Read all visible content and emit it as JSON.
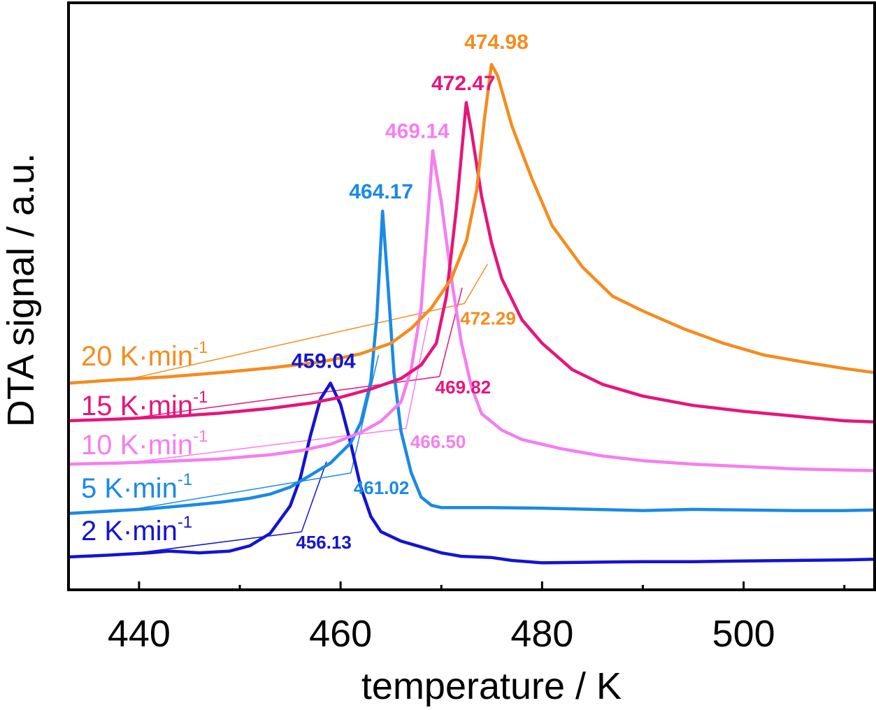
{
  "chart_data": {
    "type": "line",
    "xlabel": "temperature / K",
    "ylabel": "DTA signal / a.u.",
    "xlim": [
      433,
      513
    ],
    "ylim": [
      0,
      100
    ],
    "x_ticks": [
      440,
      460,
      480,
      500
    ],
    "x_minor_ticks": [
      450,
      470,
      490,
      510
    ],
    "y_ticks_shown": false,
    "grid": false,
    "series": [
      {
        "name": "2 K·min",
        "name_sup": "-1",
        "color": "#1414d2",
        "peak_label": "459.04",
        "onset_label": "456.13",
        "onset_x": 456.13,
        "points": [
          [
            433,
            5.6
          ],
          [
            437,
            5.9
          ],
          [
            441,
            6.3
          ],
          [
            443,
            6.6
          ],
          [
            446,
            6.3
          ],
          [
            449,
            6.6
          ],
          [
            451,
            7.5
          ],
          [
            453,
            9.6
          ],
          [
            455,
            14.3
          ],
          [
            456,
            19.0
          ],
          [
            457,
            26.2
          ],
          [
            458,
            32.5
          ],
          [
            459,
            35.2
          ],
          [
            460,
            31.6
          ],
          [
            461,
            25.0
          ],
          [
            462,
            17.5
          ],
          [
            463,
            12.5
          ],
          [
            464,
            9.9
          ],
          [
            466,
            8.3
          ],
          [
            468,
            7.3
          ],
          [
            470,
            6.3
          ],
          [
            472,
            5.7
          ],
          [
            475,
            5.5
          ],
          [
            477,
            5.0
          ],
          [
            480,
            4.6
          ],
          [
            485,
            4.7
          ],
          [
            490,
            4.8
          ],
          [
            495,
            4.8
          ],
          [
            500,
            4.9
          ],
          [
            505,
            5.0
          ],
          [
            510,
            5.1
          ],
          [
            513,
            5.2
          ]
        ]
      },
      {
        "name": "5 K·min",
        "name_sup": "-1",
        "color": "#1a8ae6",
        "peak_label": "464.17",
        "onset_label": "461.02",
        "onset_x": 461.02,
        "points": [
          [
            433,
            13.0
          ],
          [
            437,
            13.4
          ],
          [
            441,
            13.8
          ],
          [
            445,
            14.4
          ],
          [
            448,
            14.9
          ],
          [
            451,
            15.6
          ],
          [
            453,
            16.3
          ],
          [
            455,
            17.5
          ],
          [
            457,
            19.5
          ],
          [
            459,
            21.6
          ],
          [
            461,
            25.0
          ],
          [
            462,
            28.5
          ],
          [
            463,
            35.5
          ],
          [
            463.6,
            46.5
          ],
          [
            464.17,
            64.5
          ],
          [
            464.7,
            52.0
          ],
          [
            465.3,
            37.0
          ],
          [
            466,
            27.0
          ],
          [
            467,
            20.0
          ],
          [
            468,
            15.8
          ],
          [
            469,
            14.4
          ],
          [
            470,
            14.0
          ],
          [
            475,
            14.0
          ],
          [
            480,
            13.9
          ],
          [
            485,
            13.7
          ],
          [
            490,
            13.5
          ],
          [
            495,
            13.7
          ],
          [
            500,
            13.6
          ],
          [
            505,
            13.5
          ],
          [
            510,
            13.5
          ],
          [
            513,
            13.6
          ]
        ]
      },
      {
        "name": "10 K·min",
        "name_sup": "-1",
        "color": "#f57ef0",
        "peak_label": "469.14",
        "onset_label": "466.50",
        "onset_x": 466.5,
        "points": [
          [
            433,
            21.4
          ],
          [
            438,
            21.6
          ],
          [
            443,
            21.9
          ],
          [
            448,
            22.3
          ],
          [
            453,
            23.0
          ],
          [
            456,
            23.7
          ],
          [
            459,
            24.8
          ],
          [
            462,
            26.8
          ],
          [
            464,
            28.7
          ],
          [
            466,
            32.0
          ],
          [
            467,
            37.5
          ],
          [
            468,
            48.0
          ],
          [
            469.14,
            74.8
          ],
          [
            470,
            66.0
          ],
          [
            471,
            53.0
          ],
          [
            472,
            42.0
          ],
          [
            473,
            34.5
          ],
          [
            474,
            30.0
          ],
          [
            476,
            27.2
          ],
          [
            478,
            25.6
          ],
          [
            482,
            24.0
          ],
          [
            486,
            22.8
          ],
          [
            490,
            22.0
          ],
          [
            495,
            21.4
          ],
          [
            500,
            21.0
          ],
          [
            505,
            20.6
          ],
          [
            510,
            20.4
          ],
          [
            513,
            20.3
          ]
        ]
      },
      {
        "name": "15 K·min",
        "name_sup": "-1",
        "color": "#e6157c",
        "peak_label": "472.47",
        "onset_label": "469.82",
        "onset_x": 469.82,
        "points": [
          [
            433,
            28.8
          ],
          [
            438,
            29.1
          ],
          [
            443,
            29.5
          ],
          [
            448,
            30.1
          ],
          [
            453,
            30.9
          ],
          [
            457,
            31.8
          ],
          [
            460,
            32.8
          ],
          [
            463,
            34.2
          ],
          [
            466,
            36.0
          ],
          [
            468,
            38.3
          ],
          [
            469.5,
            42.0
          ],
          [
            470.5,
            50.0
          ],
          [
            471.5,
            65.0
          ],
          [
            472.47,
            83.0
          ],
          [
            473,
            78.0
          ],
          [
            474,
            67.0
          ],
          [
            475,
            59.0
          ],
          [
            476,
            53.0
          ],
          [
            478,
            46.0
          ],
          [
            480,
            42.0
          ],
          [
            483,
            37.5
          ],
          [
            486,
            35.0
          ],
          [
            490,
            33.0
          ],
          [
            495,
            31.4
          ],
          [
            500,
            30.4
          ],
          [
            505,
            29.6
          ],
          [
            510,
            28.8
          ],
          [
            513,
            28.6
          ]
        ]
      },
      {
        "name": "20 K·min",
        "name_sup": "-1",
        "color": "#f58c1e",
        "peak_label": "474.98",
        "onset_label": "472.29",
        "onset_x": 472.29,
        "points": [
          [
            433,
            35.2
          ],
          [
            438,
            35.8
          ],
          [
            443,
            36.3
          ],
          [
            448,
            37.0
          ],
          [
            453,
            37.8
          ],
          [
            458,
            38.8
          ],
          [
            462,
            40.2
          ],
          [
            465,
            42.0
          ],
          [
            467,
            44.5
          ],
          [
            469,
            48.0
          ],
          [
            471,
            53.0
          ],
          [
            472.5,
            59.5
          ],
          [
            473.5,
            68.0
          ],
          [
            474.3,
            80.5
          ],
          [
            474.98,
            89.5
          ],
          [
            475.6,
            87.5
          ],
          [
            477,
            79.0
          ],
          [
            479,
            70.0
          ],
          [
            481,
            62.0
          ],
          [
            484,
            55.0
          ],
          [
            487,
            50.0
          ],
          [
            490,
            47.5
          ],
          [
            494,
            44.5
          ],
          [
            498,
            42.0
          ],
          [
            502,
            40.0
          ],
          [
            506,
            38.8
          ],
          [
            510,
            37.7
          ],
          [
            513,
            37.0
          ]
        ]
      }
    ]
  }
}
